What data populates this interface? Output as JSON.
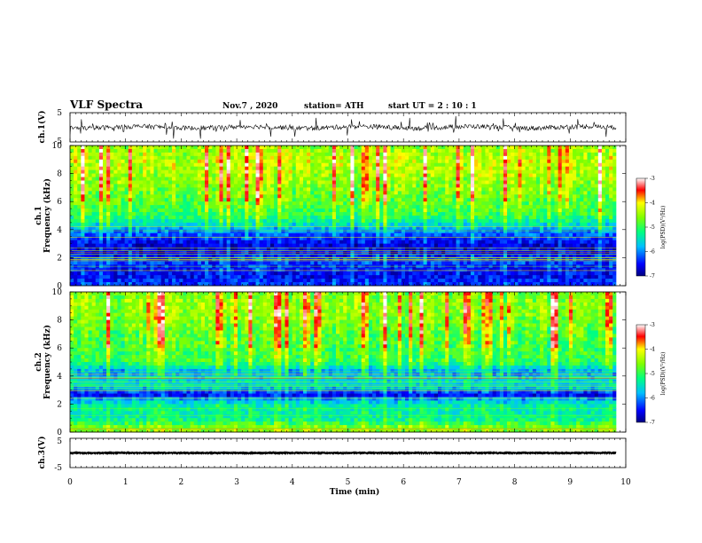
{
  "chart_data": {
    "type": "heatmap",
    "title": "VLF Spectra",
    "date": "Nov.7 , 2020",
    "station": "station= ATH",
    "start_ut": "start UT = 2 : 10 : 1",
    "xlabel": "Time (min)",
    "xlim": [
      0,
      10
    ],
    "x_ticks": [
      "0",
      "1",
      "2",
      "3",
      "4",
      "5",
      "6",
      "7",
      "8",
      "9",
      "10"
    ],
    "panels": [
      {
        "name": "ch1-waveform",
        "ylabel": "ch.1(V)",
        "ylim": [
          -5,
          5
        ],
        "y_ticks": [
          "5",
          "-5"
        ],
        "type": "line"
      },
      {
        "name": "ch1-spectrogram",
        "ylabel": "ch.1",
        "ylabel2": "Frequency (kHz)",
        "ylim": [
          0,
          10
        ],
        "y_ticks": [
          "0",
          "2",
          "4",
          "6",
          "8",
          "10"
        ],
        "type": "heatmap",
        "bands": [
          {
            "f": 0.3,
            "level": -6.4
          },
          {
            "f": 0.8,
            "level": -6.6
          },
          {
            "f": 1.3,
            "level": -6.4
          },
          {
            "f": 1.8,
            "level": -6.3
          },
          {
            "f": 2.3,
            "level": -6.5
          },
          {
            "f": 2.8,
            "level": -6.7
          },
          {
            "f": 3.3,
            "level": -6.4
          },
          {
            "f": 3.8,
            "level": -6.1
          },
          {
            "f": 4.3,
            "level": -5.6
          },
          {
            "f": 5.0,
            "level": -5.0
          },
          {
            "f": 6.0,
            "level": -4.8
          },
          {
            "f": 7.0,
            "level": -4.6
          },
          {
            "f": 8.0,
            "level": -4.4
          },
          {
            "f": 9.0,
            "level": -4.3
          },
          {
            "f": 9.8,
            "level": -4.5
          }
        ]
      },
      {
        "name": "ch2-spectrogram",
        "ylabel": "ch.2",
        "ylabel2": "Frequency (kHz)",
        "ylim": [
          0,
          10
        ],
        "y_ticks": [
          "0",
          "2",
          "4",
          "6",
          "8",
          "10"
        ],
        "type": "heatmap",
        "bands": [
          {
            "f": 0.3,
            "level": -4.6
          },
          {
            "f": 0.8,
            "level": -5.2
          },
          {
            "f": 1.3,
            "level": -5.4
          },
          {
            "f": 1.8,
            "level": -5.3
          },
          {
            "f": 2.3,
            "level": -5.8
          },
          {
            "f": 2.7,
            "level": -6.7
          },
          {
            "f": 3.2,
            "level": -5.6
          },
          {
            "f": 3.8,
            "level": -5.6
          },
          {
            "f": 4.3,
            "level": -5.9
          },
          {
            "f": 5.0,
            "level": -5.0
          },
          {
            "f": 6.0,
            "level": -4.9
          },
          {
            "f": 7.0,
            "level": -4.8
          },
          {
            "f": 8.0,
            "level": -4.6
          },
          {
            "f": 9.0,
            "level": -4.5
          },
          {
            "f": 9.8,
            "level": -4.6
          }
        ]
      },
      {
        "name": "ch3-waveform",
        "ylabel": "ch.3(V)",
        "ylim": [
          -5,
          5
        ],
        "y_ticks": [
          "5",
          "-5"
        ],
        "type": "line"
      }
    ],
    "colorbar": {
      "label": "log(PSD)(V²/Hz)",
      "range": [
        -7,
        -3
      ],
      "ticks": [
        "-3",
        "-4",
        "-5",
        "-6",
        "-7"
      ]
    }
  }
}
